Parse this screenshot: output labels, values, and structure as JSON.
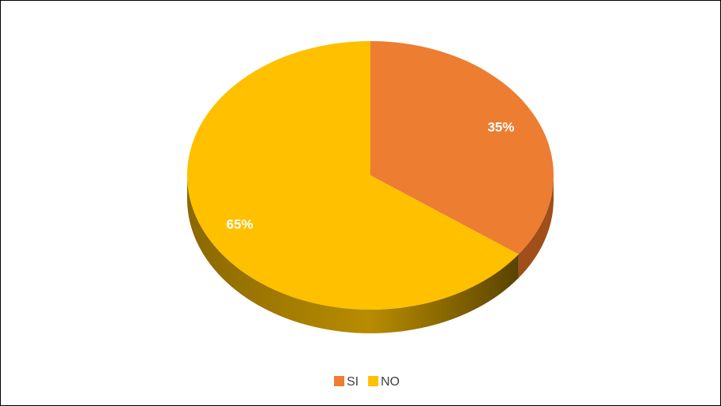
{
  "chart_data": {
    "type": "pie",
    "title": "",
    "slices": [
      {
        "label": "SI",
        "value": 35,
        "data_label": "35%",
        "color": "#ED7D31",
        "side_color": "#A04E1A"
      },
      {
        "label": "NO",
        "value": 65,
        "data_label": "65%",
        "color": "#FFC000",
        "side_color": "#7A5C00"
      }
    ],
    "legend_position": "bottom",
    "style": "3d"
  }
}
